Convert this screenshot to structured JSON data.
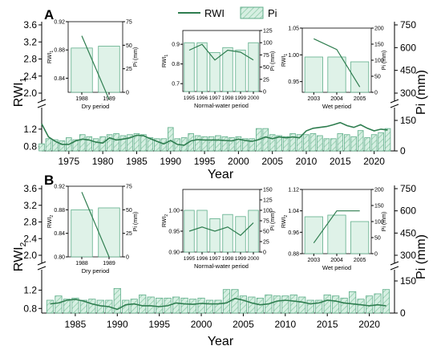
{
  "legend": {
    "line_label": "RWI",
    "bar_label": "Pi"
  },
  "colors": {
    "line": "#2e7d4f",
    "bar_stroke": "#5fae8a",
    "bar_fill": "#d6efe2",
    "hatch": "#8fcaa9",
    "axis": "#000000"
  },
  "chart_data": [
    {
      "panel_letter": "A",
      "type": "bar+line",
      "left_axis_label": "RWI",
      "left_axis_sub": "1",
      "right_axis_label": "Pi (mm)",
      "xlabel": "Year",
      "left_ticks": [
        "3.6",
        "3.2",
        "2.8",
        "2.4",
        "2.0",
        "1.2",
        "0.8"
      ],
      "right_ticks": [
        "750",
        "600",
        "450",
        "300",
        "150",
        "0"
      ],
      "x_ticks": [
        "1975",
        "1980",
        "1985",
        "1990",
        "1995",
        "2000",
        "2005",
        "2010",
        "2015",
        "2020"
      ],
      "xlim": [
        1971,
        2023
      ],
      "ylim_left_lower": [
        0.7,
        1.4
      ],
      "ylim_right": [
        0,
        150
      ],
      "years": [
        1971,
        1972,
        1973,
        1974,
        1975,
        1976,
        1977,
        1978,
        1979,
        1980,
        1981,
        1982,
        1983,
        1984,
        1985,
        1986,
        1987,
        1988,
        1989,
        1990,
        1991,
        1992,
        1993,
        1994,
        1995,
        1996,
        1997,
        1998,
        1999,
        2000,
        2001,
        2002,
        2003,
        2004,
        2005,
        2006,
        2007,
        2008,
        2009,
        2010,
        2011,
        2012,
        2013,
        2014,
        2015,
        2016,
        2017,
        2018,
        2019,
        2020,
        2021,
        2022
      ],
      "pi": [
        35,
        60,
        55,
        50,
        65,
        55,
        80,
        70,
        60,
        70,
        80,
        85,
        75,
        80,
        85,
        80,
        65,
        60,
        60,
        115,
        60,
        65,
        85,
        75,
        70,
        70,
        75,
        70,
        65,
        70,
        60,
        60,
        110,
        110,
        80,
        75,
        70,
        85,
        80,
        80,
        85,
        75,
        60,
        60,
        85,
        80,
        70,
        100,
        65,
        80,
        90,
        110
      ],
      "rwi": [
        1.32,
        1.02,
        0.92,
        0.85,
        0.85,
        0.93,
        0.97,
        0.95,
        0.9,
        0.88,
        1.0,
        0.95,
        0.97,
        1.0,
        1.06,
        1.05,
        0.98,
        0.92,
        0.86,
        0.94,
        0.85,
        0.83,
        0.93,
        0.96,
        0.95,
        0.95,
        0.95,
        0.94,
        0.93,
        0.97,
        0.94,
        0.92,
        0.96,
        1.02,
        0.98,
        1.02,
        1.0,
        1.02,
        1.0,
        1.16,
        1.22,
        1.24,
        1.26,
        1.3,
        1.35,
        1.28,
        1.24,
        1.3,
        1.22,
        1.16,
        1.2,
        1.18
      ],
      "insets": [
        {
          "name": "Dry period",
          "categories": [
            "1988",
            "1989"
          ],
          "pi_values": [
            47,
            49
          ],
          "rwi_values": [
            0.9,
            0.81
          ],
          "rwi_ticks": [
            "0.92",
            "0.88",
            "0.84"
          ],
          "rwi_lim": [
            0.82,
            0.92
          ],
          "pi_ticks": [
            "75",
            "50",
            "25",
            "0"
          ],
          "pi_lim": [
            0,
            75
          ],
          "rwi_label": "RWI",
          "rwi_sub": "1",
          "pi_label": "Pi (mm)"
        },
        {
          "name": "Normal-water period",
          "categories": [
            "1995",
            "1996",
            "1997",
            "1998",
            "1999",
            "2000"
          ],
          "pi_values": [
            100,
            100,
            80,
            90,
            85,
            100
          ],
          "rwi_values": [
            0.87,
            0.9,
            0.82,
            0.87,
            0.86,
            0.82
          ],
          "rwi_ticks": [
            "0.9",
            "0.8",
            "0.7"
          ],
          "rwi_lim": [
            0.66,
            0.97
          ],
          "pi_ticks": [
            "125",
            "100",
            "75",
            "50",
            "25",
            "0"
          ],
          "pi_lim": [
            0,
            125
          ],
          "rwi_label": "RWI",
          "rwi_sub": "1",
          "pi_label": "Pi (mm)"
        },
        {
          "name": "Wet period",
          "categories": [
            "2003",
            "2004",
            "2005"
          ],
          "pi_values": [
            110,
            110,
            95
          ],
          "rwi_values": [
            1.03,
            1.01,
            0.94
          ],
          "rwi_ticks": [
            "1.05",
            "1.00",
            "0.95"
          ],
          "rwi_lim": [
            0.93,
            1.05
          ],
          "pi_ticks": [
            "200",
            "150",
            "100",
            "50",
            "0"
          ],
          "pi_lim": [
            0,
            200
          ],
          "rwi_label": "RWI",
          "rwi_sub": "1",
          "pi_label": "Pi (mm)"
        }
      ]
    },
    {
      "panel_letter": "B",
      "type": "bar+line",
      "left_axis_label": "RWI",
      "left_axis_sub": "2",
      "right_axis_label": "Pi (mm)",
      "xlabel": "Year",
      "left_ticks": [
        "3.6",
        "3.2",
        "2.8",
        "2.4",
        "2.0",
        "1.2",
        "0.8"
      ],
      "right_ticks": [
        "750",
        "600",
        "450",
        "300",
        "150",
        "0"
      ],
      "x_ticks": [
        "1985",
        "1990",
        "1995",
        "2000",
        "2005",
        "2010",
        "2015",
        "2020"
      ],
      "xlim": [
        1981,
        2023
      ],
      "ylim_left_lower": [
        0.7,
        1.4
      ],
      "ylim_right": [
        0,
        150
      ],
      "years": [
        1982,
        1983,
        1984,
        1985,
        1986,
        1987,
        1988,
        1989,
        1990,
        1991,
        1992,
        1993,
        1994,
        1995,
        1996,
        1997,
        1998,
        1999,
        2000,
        2001,
        2002,
        2003,
        2004,
        2005,
        2006,
        2007,
        2008,
        2009,
        2010,
        2011,
        2012,
        2013,
        2014,
        2015,
        2016,
        2017,
        2018,
        2019,
        2020,
        2021,
        2022
      ],
      "pi": [
        60,
        80,
        65,
        70,
        60,
        65,
        60,
        60,
        115,
        60,
        65,
        85,
        75,
        70,
        70,
        75,
        70,
        65,
        70,
        60,
        60,
        110,
        110,
        80,
        75,
        70,
        85,
        80,
        80,
        85,
        75,
        60,
        60,
        85,
        80,
        70,
        100,
        65,
        80,
        90,
        110
      ],
      "rwi": [
        0.9,
        0.92,
        0.98,
        1.0,
        0.96,
        0.9,
        0.86,
        0.84,
        0.78,
        0.88,
        0.9,
        0.86,
        0.86,
        0.84,
        0.86,
        0.92,
        0.9,
        0.89,
        0.91,
        0.9,
        0.9,
        0.92,
        1.02,
        0.98,
        0.92,
        0.88,
        0.9,
        0.96,
        0.98,
        0.96,
        0.94,
        0.9,
        0.92,
        0.98,
        0.96,
        0.92,
        0.9,
        0.88,
        0.86,
        0.88,
        0.86
      ],
      "insets": [
        {
          "name": "Dry period",
          "categories": [
            "1988",
            "1989"
          ],
          "pi_values": [
            50,
            52
          ],
          "rwi_values": [
            0.91,
            0.8
          ],
          "rwi_ticks": [
            "0.92",
            "0.88",
            "0.84",
            "0.80"
          ],
          "rwi_lim": [
            0.8,
            0.92
          ],
          "pi_ticks": [
            "75",
            "50",
            "25",
            "0"
          ],
          "pi_lim": [
            0,
            75
          ],
          "rwi_label": "RWI",
          "rwi_sub": "2",
          "pi_label": "Pi (mm)"
        },
        {
          "name": "Normal-water period",
          "categories": [
            "1995",
            "1996",
            "1997",
            "1998",
            "1999",
            "2000"
          ],
          "pi_values": [
            100,
            100,
            80,
            90,
            85,
            100
          ],
          "rwi_values": [
            0.95,
            0.96,
            0.95,
            0.96,
            0.94,
            0.97
          ],
          "rwi_ticks": [
            "1.00",
            "0.95",
            "0.90"
          ],
          "rwi_lim": [
            0.9,
            1.05
          ],
          "pi_ticks": [
            "150",
            "125",
            "100",
            "75",
            "50",
            "25",
            "0"
          ],
          "pi_lim": [
            0,
            150
          ],
          "rwi_label": "RWI",
          "rwi_sub": "2",
          "pi_label": "Pi (mm)"
        },
        {
          "name": "Wet period",
          "categories": [
            "2003",
            "2004",
            "2005"
          ],
          "pi_values": [
            115,
            120,
            100
          ],
          "rwi_values": [
            0.92,
            1.04,
            1.04
          ],
          "rwi_ticks": [
            "1.12",
            "1.04",
            "0.96",
            "0.88"
          ],
          "rwi_lim": [
            0.88,
            1.12
          ],
          "pi_ticks": [
            "200",
            "150",
            "100",
            "50",
            "0"
          ],
          "pi_lim": [
            0,
            200
          ],
          "rwi_label": "RWI",
          "rwi_sub": "2",
          "pi_label": "Pi (mm)"
        }
      ]
    }
  ]
}
